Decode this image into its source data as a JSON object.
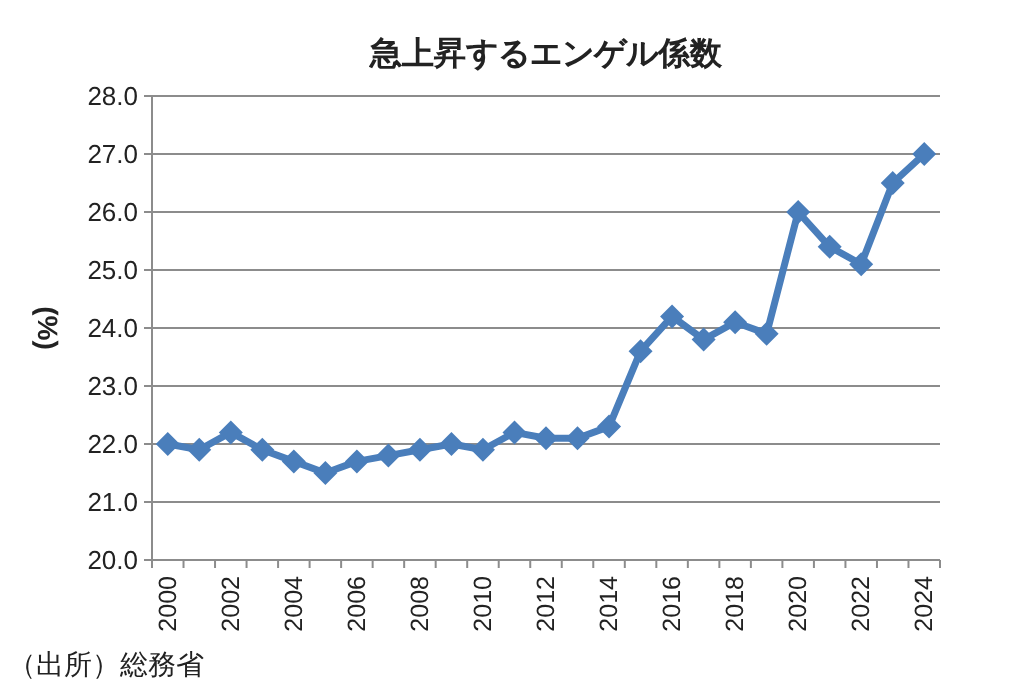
{
  "chart_data": {
    "type": "line",
    "title": "急上昇するエンゲル係数",
    "ylabel": "(%)",
    "categories": [
      "2000",
      null,
      "2002",
      null,
      "2004",
      null,
      "2006",
      null,
      "2008",
      null,
      "2010",
      null,
      "2012",
      null,
      "2014",
      null,
      "2016",
      null,
      "2018",
      null,
      "2020",
      null,
      "2022",
      null,
      "2024"
    ],
    "series": [
      {
        "color": "#4a7ebb",
        "values": [
          22.0,
          21.9,
          22.2,
          21.9,
          21.7,
          21.5,
          21.7,
          21.8,
          21.9,
          22.0,
          21.9,
          22.2,
          22.1,
          22.1,
          22.3,
          23.6,
          24.2,
          23.8,
          24.1,
          23.9,
          26.0,
          25.4,
          25.1,
          26.5,
          27.0
        ]
      }
    ],
    "ylim": [
      20,
      28
    ],
    "yticks": [
      {
        "value": 20,
        "label": "20.0"
      },
      {
        "value": 21,
        "label": "21.0"
      },
      {
        "value": 22,
        "label": "22.0"
      },
      {
        "value": 23,
        "label": "23.0"
      },
      {
        "value": 24,
        "label": "24.0"
      },
      {
        "value": 25,
        "label": "25.0"
      },
      {
        "value": 26,
        "label": "26.0"
      },
      {
        "value": 27,
        "label": "27.0"
      },
      {
        "value": 28,
        "label": "28.0"
      }
    ],
    "grid": "y",
    "marker": "diamond",
    "line_style": "solid",
    "annotations": [
      "（出所）総務省"
    ]
  }
}
